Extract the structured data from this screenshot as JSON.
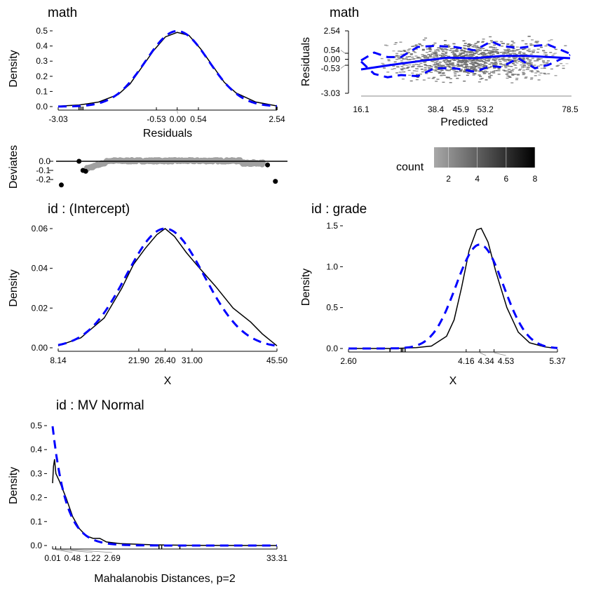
{
  "colors": {
    "normal_line": "#0000ff",
    "empirical_line": "#000000",
    "deviate_gray": "#a0a0a0",
    "deviate_outlier": "#000000"
  },
  "chart_data": [
    {
      "type": "line",
      "title": "math",
      "xlabel": "Residuals",
      "ylabel": "Density",
      "xlim": [
        -3.03,
        2.54
      ],
      "ylim": [
        0,
        0.5
      ],
      "xticks": [
        "-3.03",
        "-0.53",
        "0.00",
        "0.54",
        "2.54"
      ],
      "xtick_values": [
        -3.03,
        -0.53,
        0,
        0.54,
        2.54
      ],
      "yticks": [
        "0.0",
        "0.1",
        "0.2",
        "0.3",
        "0.4",
        "0.5"
      ],
      "normal": {
        "mean": 0,
        "sd": 0.8
      },
      "empirical": {
        "x": [
          -3.03,
          -2.5,
          -2,
          -1.5,
          -1.2,
          -0.9,
          -0.6,
          -0.3,
          0,
          0.3,
          0.6,
          0.9,
          1.2,
          1.5,
          2,
          2.54
        ],
        "y": [
          0.003,
          0.01,
          0.03,
          0.08,
          0.15,
          0.26,
          0.37,
          0.46,
          0.49,
          0.47,
          0.38,
          0.27,
          0.16,
          0.09,
          0.03,
          0.004
        ]
      },
      "rug": [
        -2.5,
        -2.45,
        -2.4,
        2.52,
        2.54
      ]
    },
    {
      "type": "scatter",
      "ylabel": "Deviates",
      "yticks": [
        "0.0",
        "-0.1",
        "-0.2"
      ],
      "ylim": [
        -0.27,
        0.03
      ],
      "outliers": {
        "x": [
          -2.95,
          -2.5,
          -2.4,
          -2.33,
          2.3,
          2.5
        ],
        "y": [
          -0.26,
          0.0,
          -0.1,
          -0.11,
          -0.04,
          -0.22
        ]
      }
    },
    {
      "type": "heatmap",
      "title": "math",
      "xlabel": "Predicted",
      "ylabel": "Residuals",
      "xlim": [
        16.1,
        78.5
      ],
      "ylim": [
        -3.03,
        2.54
      ],
      "xticks": [
        "16.1",
        "38.4",
        "45.9",
        "53.2",
        "78.5"
      ],
      "xtick_values": [
        16.1,
        38.4,
        45.9,
        53.2,
        78.5
      ],
      "yticks": [
        "2.54",
        "0.54",
        "0.00",
        "-0.53",
        "-3.03"
      ],
      "ytick_values": [
        2.54,
        0.54,
        0,
        -0.53,
        -3.03
      ],
      "legend": {
        "title": "count",
        "ticks": [
          "2",
          "4",
          "6",
          "8"
        ],
        "range": [
          1,
          8
        ],
        "placement": "bottom"
      },
      "smooth": {
        "x": [
          16.1,
          25,
          35,
          42,
          50,
          58,
          66,
          78.5
        ],
        "y": [
          -0.9,
          -0.5,
          -0.1,
          0.15,
          0.1,
          0.3,
          0.3,
          0.1
        ]
      },
      "upper": {
        "x": [
          16.1,
          20,
          24,
          28,
          33,
          38,
          44,
          50,
          55,
          58,
          63,
          68,
          72,
          78.5
        ],
        "y": [
          -0.1,
          0.6,
          0.2,
          0.2,
          1.1,
          1.2,
          1.1,
          0.8,
          1.6,
          1.2,
          1.0,
          1.2,
          1.3,
          0.5
        ]
      },
      "lower": {
        "x": [
          16.1,
          20,
          24,
          28,
          33,
          38,
          44,
          50,
          55,
          58,
          63,
          68,
          72,
          78.5
        ],
        "y": [
          -0.2,
          -1.3,
          -1.6,
          -1.4,
          -1.5,
          -0.8,
          -0.8,
          -1.1,
          -0.6,
          -0.7,
          0.1,
          -0.8,
          -0.5,
          0.4
        ]
      }
    },
    {
      "type": "line",
      "title": "id : (Intercept)",
      "xlabel": "X",
      "ylabel": "Density",
      "xlim": [
        8.14,
        45.5
      ],
      "ylim": [
        0,
        0.06
      ],
      "xticks": [
        "8.14",
        "21.90",
        "26.40",
        "31.00",
        "45.50"
      ],
      "xtick_values": [
        8.14,
        21.9,
        26.4,
        31,
        45.5
      ],
      "yticks": [
        "0.00",
        "0.02",
        "0.04",
        "0.06"
      ],
      "ytick_values": [
        0,
        0.02,
        0.04,
        0.06
      ],
      "normal": {
        "mean": 26.4,
        "sd": 6.65
      },
      "empirical": {
        "x": [
          8.14,
          12,
          16,
          19,
          21,
          23,
          25,
          26.4,
          28,
          30,
          32,
          35,
          38,
          41,
          43,
          45.5
        ],
        "y": [
          0.001,
          0.005,
          0.015,
          0.03,
          0.042,
          0.05,
          0.057,
          0.06,
          0.056,
          0.048,
          0.041,
          0.031,
          0.02,
          0.013,
          0.007,
          0.001
        ]
      }
    },
    {
      "type": "line",
      "title": "id : grade",
      "xlabel": "X",
      "ylabel": "Density",
      "xlim": [
        2.6,
        5.37
      ],
      "ylim": [
        0,
        1.5
      ],
      "xticks": [
        "2.60",
        "4.16",
        "4.34",
        "4.53",
        "5.37"
      ],
      "xtick_values": [
        2.6,
        4.16,
        4.34,
        4.53,
        5.37
      ],
      "yticks": [
        "0.0",
        "0.5",
        "1.0",
        "1.5"
      ],
      "ytick_values": [
        0,
        0.5,
        1,
        1.5
      ],
      "normal": {
        "mean": 4.34,
        "sd": 0.314
      },
      "empirical": {
        "x": [
          2.6,
          3.2,
          3.5,
          3.7,
          3.9,
          4.0,
          4.1,
          4.2,
          4.3,
          4.36,
          4.45,
          4.55,
          4.7,
          4.85,
          5.0,
          5.2,
          5.37
        ],
        "y": [
          0,
          0,
          0.01,
          0.03,
          0.15,
          0.35,
          0.75,
          1.2,
          1.45,
          1.47,
          1.3,
          0.95,
          0.5,
          0.2,
          0.07,
          0.02,
          0
        ]
      },
      "rug": [
        3.15,
        3.3,
        3.32,
        3.35
      ]
    },
    {
      "type": "line",
      "title": "id : MV Normal",
      "xlabel": "Mahalanobis Distances, p=2",
      "ylabel": "Density",
      "xlim": [
        0.01,
        33.31
      ],
      "ylim": [
        0,
        0.5
      ],
      "xticks": [
        "0.01",
        "0.48",
        "1.22",
        "2.69",
        "33.31"
      ],
      "xtick_values": [
        0.01,
        0.48,
        1.22,
        2.69,
        33.31
      ],
      "yticks": [
        "0.0",
        "0.1",
        "0.2",
        "0.3",
        "0.4",
        "0.5"
      ],
      "ytick_values": [
        0,
        0.1,
        0.2,
        0.3,
        0.4,
        0.5
      ],
      "normal": {
        "chisq_df": 2
      },
      "empirical": {
        "x": [
          0.01,
          0.15,
          0.3,
          0.5,
          1,
          2,
          3,
          4,
          5,
          6,
          7,
          8,
          10,
          15,
          20,
          33.31
        ],
        "y": [
          0.26,
          0.33,
          0.36,
          0.3,
          0.27,
          0.2,
          0.12,
          0.07,
          0.04,
          0.03,
          0.03,
          0.015,
          0.008,
          0.003,
          0.001,
          0
        ]
      },
      "rug": [
        15.8,
        16.2,
        18.9
      ]
    }
  ]
}
